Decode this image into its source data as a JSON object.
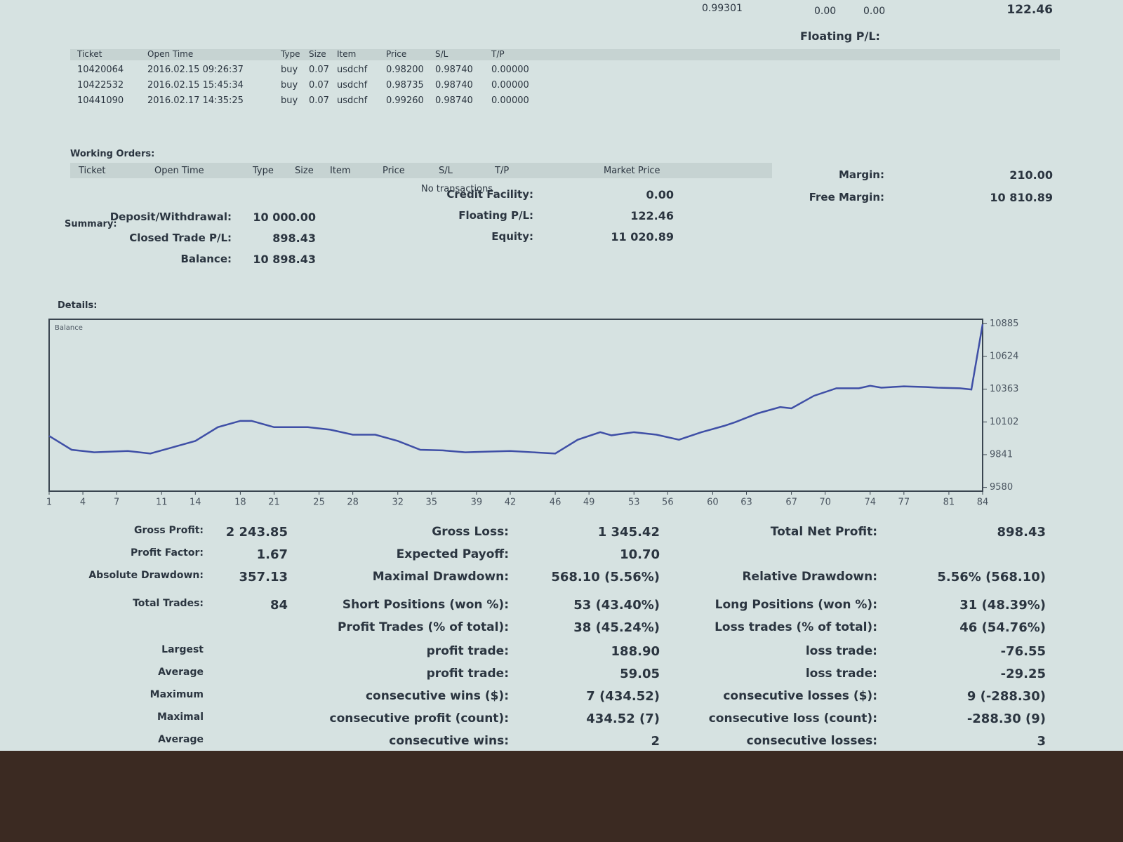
{
  "trades": {
    "columns": [
      "Ticket",
      "Open Time",
      "Type",
      "Size",
      "Item",
      "Price",
      "S/L",
      "T/P"
    ],
    "rows": [
      [
        "10420064",
        "2016.02.15 09:26:37",
        "buy",
        "0.07",
        "usdchf",
        "0.98200",
        "0.98740",
        "0.00000"
      ],
      [
        "10422532",
        "2016.02.15 15:45:34",
        "buy",
        "0.07",
        "usdchf",
        "0.98735",
        "0.98740",
        "0.00000"
      ],
      [
        "10441090",
        "2016.02.17 14:35:25",
        "buy",
        "0.07",
        "usdchf",
        "0.99260",
        "0.98740",
        "0.00000"
      ]
    ],
    "totals": {
      "market_price": "0.99301",
      "commission": "0.00",
      "swap": "0.00",
      "profit": "122.46",
      "label": "Floating P/L:"
    }
  },
  "working_orders": {
    "title": "Working Orders:",
    "columns": [
      "Ticket",
      "Open Time",
      "Type",
      "Size",
      "Item",
      "Price",
      "S/L",
      "T/P",
      "Market Price"
    ],
    "message": "No transactions"
  },
  "summary": {
    "title": "Summary:",
    "items": [
      {
        "label": "Deposit/Withdrawal:",
        "value": "10 000.00"
      },
      {
        "label": "Closed Trade P/L:",
        "value": "898.43"
      },
      {
        "label": "Balance:",
        "value": "10 898.43"
      },
      {
        "label": "Credit Facility:",
        "value": "0.00"
      },
      {
        "label": "Floating P/L:",
        "value": "122.46"
      },
      {
        "label": "Equity:",
        "value": "11 020.89"
      },
      {
        "label": "Margin:",
        "value": "210.00"
      },
      {
        "label": "Free Margin:",
        "value": "10 810.89"
      }
    ]
  },
  "details_title": "Details:",
  "chart_data": {
    "type": "line",
    "x": [
      1,
      3,
      5,
      8,
      10,
      12,
      14,
      16,
      18,
      19,
      21,
      24,
      26,
      28,
      30,
      32,
      34,
      36,
      38,
      40,
      42,
      44,
      46,
      48,
      50,
      51,
      53,
      55,
      57,
      59,
      61,
      62,
      64,
      66,
      67,
      69,
      71,
      73,
      74,
      75,
      77,
      79,
      80,
      82,
      83,
      84
    ],
    "series": [
      {
        "name": "Balance",
        "color": "#3f4fa6",
        "values": [
          9990,
          9880,
          9860,
          9870,
          9850,
          9900,
          9950,
          10060,
          10110,
          10110,
          10060,
          10060,
          10040,
          10000,
          10000,
          9950,
          9880,
          9875,
          9860,
          9865,
          9870,
          9860,
          9850,
          9960,
          10020,
          9995,
          10020,
          10000,
          9960,
          10020,
          10070,
          10100,
          10170,
          10220,
          10210,
          10310,
          10370,
          10370,
          10390,
          10375,
          10385,
          10380,
          10375,
          10370,
          10360,
          10880
        ]
      }
    ],
    "xlim": [
      1,
      84
    ],
    "xticks": [
      1,
      4,
      7,
      11,
      14,
      18,
      21,
      25,
      28,
      32,
      35,
      39,
      42,
      46,
      49,
      53,
      56,
      60,
      63,
      67,
      70,
      74,
      77,
      81,
      84
    ],
    "ylim": [
      9550,
      10920
    ],
    "yticks": [
      9580,
      9841,
      10102,
      10363,
      10624,
      10885
    ]
  },
  "stats": {
    "rows": [
      [
        {
          "label": "Gross Profit:",
          "value": "2 243.85"
        },
        {
          "label": "Gross Loss:",
          "value": "1 345.42"
        },
        {
          "label": "Total Net Profit:",
          "value": "898.43"
        }
      ],
      [
        {
          "label": "Profit Factor:",
          "value": "1.67"
        },
        {
          "label": "Expected Payoff:",
          "value": "10.70"
        },
        null
      ],
      [
        {
          "label": "Absolute Drawdown:",
          "value": "357.13"
        },
        {
          "label": "Maximal Drawdown:",
          "value": "568.10 (5.56%)"
        },
        {
          "label": "Relative Drawdown:",
          "value": "5.56% (568.10)"
        }
      ],
      [
        {
          "label": "Total Trades:",
          "value": "84"
        },
        {
          "label": "Short Positions (won %):",
          "value": "53 (43.40%)"
        },
        {
          "label": "Long Positions (won %):",
          "value": "31 (48.39%)"
        }
      ],
      [
        null,
        {
          "label": "Profit Trades (% of total):",
          "value": "38 (45.24%)"
        },
        {
          "label": "Loss trades (% of total):",
          "value": "46 (54.76%)"
        }
      ],
      [
        {
          "label": "Largest"
        },
        {
          "label": "profit trade:",
          "value": "188.90"
        },
        {
          "label": "loss trade:",
          "value": "-76.55"
        }
      ],
      [
        {
          "label": "Average"
        },
        {
          "label": "profit trade:",
          "value": "59.05"
        },
        {
          "label": "loss trade:",
          "value": "-29.25"
        }
      ],
      [
        {
          "label": "Maximum"
        },
        {
          "label": "consecutive wins ($):",
          "value": "7 (434.52)"
        },
        {
          "label": "consecutive losses ($):",
          "value": "9 (-288.30)"
        }
      ],
      [
        {
          "label": "Maximal"
        },
        {
          "label": "consecutive profit (count):",
          "value": "434.52 (7)"
        },
        {
          "label": "consecutive loss (count):",
          "value": "-288.30 (9)"
        }
      ],
      [
        {
          "label": "Average"
        },
        {
          "label": "consecutive wins:",
          "value": "2"
        },
        {
          "label": "consecutive losses:",
          "value": "3"
        }
      ]
    ]
  }
}
